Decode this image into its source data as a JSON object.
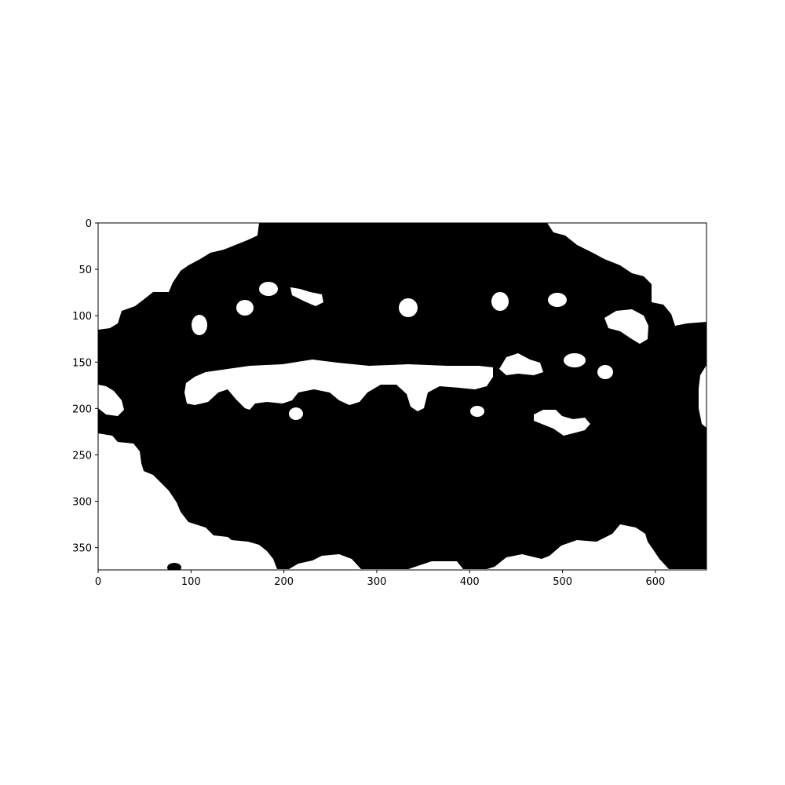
{
  "chart_data": {
    "type": "heatmap",
    "title": "",
    "xlabel": "",
    "ylabel": "",
    "xlim": [
      0,
      655
    ],
    "ylim": [
      374,
      0
    ],
    "x_ticks": [
      0,
      100,
      200,
      300,
      400,
      500,
      600
    ],
    "y_ticks": [
      0,
      50,
      100,
      150,
      200,
      250,
      300,
      350
    ],
    "x_tick_labels": [
      "0",
      "100",
      "200",
      "300",
      "400",
      "500",
      "600"
    ],
    "y_tick_labels": [
      "0",
      "50",
      "100",
      "150",
      "200",
      "250",
      "300",
      "350"
    ],
    "colormap": "binary mask (black / white)",
    "colors": {
      "foreground": "#000000",
      "background": "#ffffff"
    },
    "grid": false,
    "legend": "none"
  }
}
